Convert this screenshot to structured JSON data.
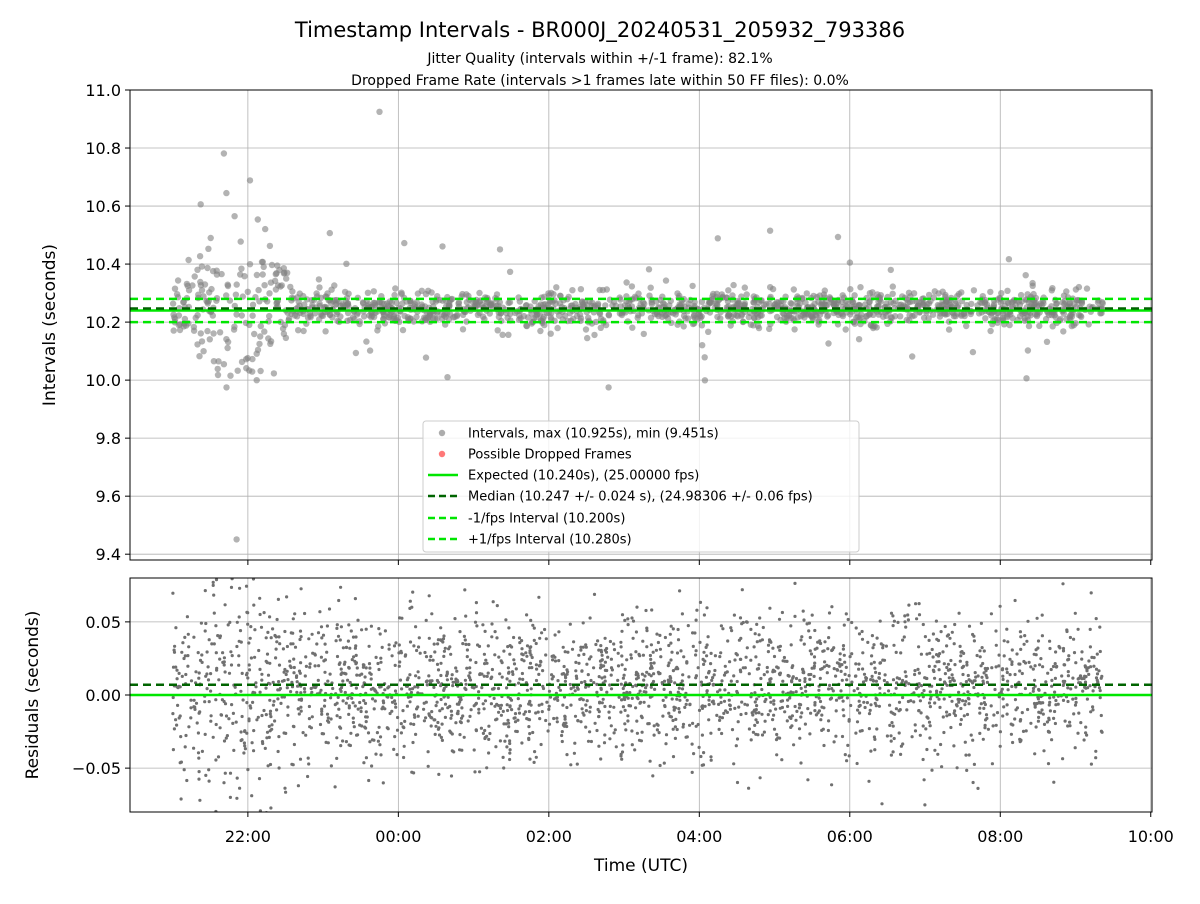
{
  "chart_data": {
    "type": "scatter",
    "title": "Timestamp Intervals - BR000J_20240531_205932_793386",
    "subtitle_lines": [
      "Jitter Quality (intervals within +/-1 frame): 82.1%",
      "Dropped Frame Rate (intervals >1 frames late within 50 FF files): 0.0%"
    ],
    "xlabel": "Time (UTC)",
    "x_tick_labels": [
      "22:00",
      "00:00",
      "02:00",
      "04:00",
      "06:00",
      "08:00",
      "10:00"
    ],
    "x_range": [
      "2024-05-31T20:26",
      "2024-06-01T10:01"
    ],
    "data_range": [
      "2024-05-31T21:00",
      "2024-06-01T09:22"
    ],
    "grid": true,
    "panels": [
      {
        "ylabel": "Intervals (seconds)",
        "ylim": [
          9.38,
          11.0
        ],
        "y_ticks": [
          "9.4",
          "9.6",
          "9.8",
          "10.0",
          "10.2",
          "10.4",
          "10.6",
          "10.8",
          "11.0"
        ],
        "legend_position": "lower-center",
        "series": [
          {
            "name": "Intervals, max (10.925s), min (9.451s)",
            "kind": "scatter",
            "color": "#808080",
            "stats": {
              "max": 10.925,
              "min": 9.451,
              "center": 10.247,
              "typical_spread": 0.03
            }
          },
          {
            "name": "Possible Dropped Frames",
            "kind": "scatter",
            "color": "#ff6060",
            "values": []
          },
          {
            "name": "Expected (10.240s), (25.00000 fps)",
            "kind": "hline",
            "y": 10.24,
            "color": "#00e600",
            "style": "solid"
          },
          {
            "name": "Median (10.247 +/- 0.024 s), (24.98306 +/- 0.06 fps)",
            "kind": "hline",
            "y": 10.247,
            "color": "#006400",
            "style": "dashed"
          },
          {
            "name": "-1/fps Interval (10.200s)",
            "kind": "hline",
            "y": 10.2,
            "color": "#00e600",
            "style": "dashed"
          },
          {
            "name": "+1/fps Interval (10.280s)",
            "kind": "hline",
            "y": 10.28,
            "color": "#00e600",
            "style": "dashed"
          }
        ]
      },
      {
        "ylabel": "Residuals (seconds)",
        "ylim": [
          -0.08,
          0.08
        ],
        "y_ticks": [
          "−0.05",
          "0.00",
          "0.05"
        ],
        "series": [
          {
            "kind": "scatter",
            "color": "#707070",
            "stats": {
              "center": 0.005,
              "typical_spread": 0.025
            }
          },
          {
            "kind": "hline",
            "y": 0.0,
            "color": "#00e600",
            "style": "solid"
          },
          {
            "kind": "hline",
            "y": 0.007,
            "color": "#006400",
            "style": "dashed"
          }
        ]
      }
    ]
  }
}
